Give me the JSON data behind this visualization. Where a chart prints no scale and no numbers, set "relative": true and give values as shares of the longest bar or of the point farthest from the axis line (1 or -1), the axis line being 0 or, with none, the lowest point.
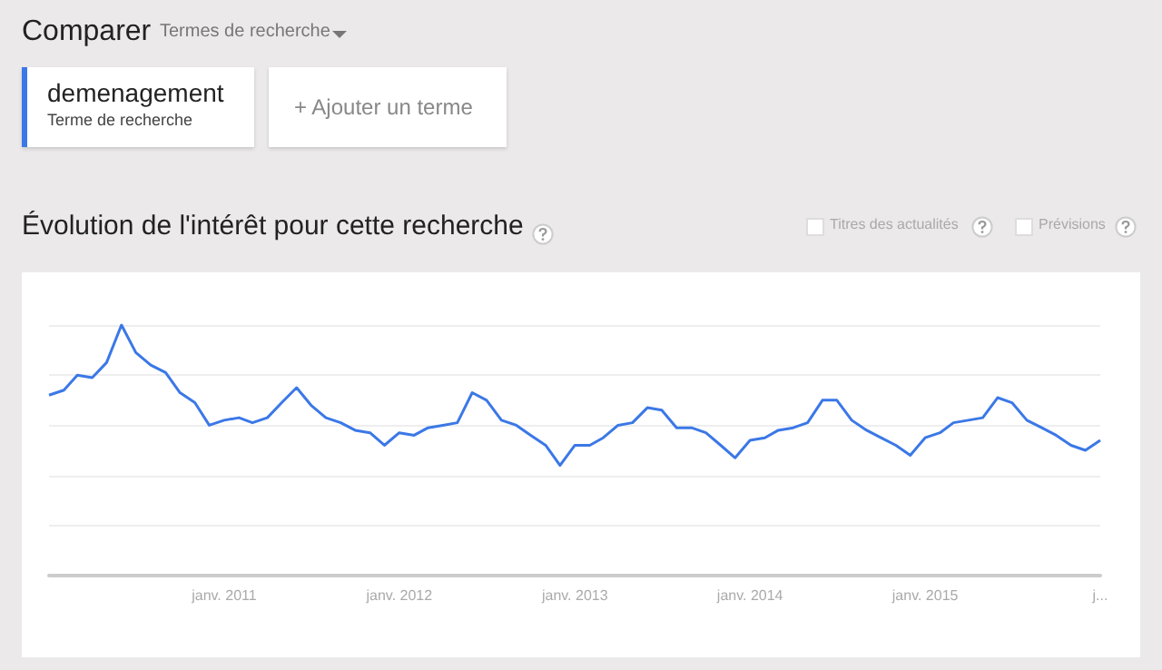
{
  "chart_data": {
    "type": "line",
    "title": "Évolution de l'intérêt pour cette recherche",
    "relative": true,
    "grid": "y",
    "legend": "top left",
    "marker": "none",
    "line_style": "solid",
    "annotations": [
      "Comparer",
      "Termes de recherche",
      "Terme de recherche",
      "+ Ajouter un terme",
      "Titres des actualités",
      "Prévisions"
    ],
    "x": [
      "2010-01",
      "2010-02",
      "2010-03",
      "2010-04",
      "2010-05",
      "2010-06",
      "2010-07",
      "2010-08",
      "2010-09",
      "2010-10",
      "2010-11",
      "2010-12",
      "2011-01",
      "2011-02",
      "2011-03",
      "2011-04",
      "2011-05",
      "2011-06",
      "2011-07",
      "2011-08",
      "2011-09",
      "2011-10",
      "2011-11",
      "2011-12",
      "2012-01",
      "2012-02",
      "2012-03",
      "2012-04",
      "2012-05",
      "2012-06",
      "2012-07",
      "2012-08",
      "2012-09",
      "2012-10",
      "2012-11",
      "2012-12",
      "2013-01",
      "2013-02",
      "2013-03",
      "2013-04",
      "2013-05",
      "2013-06",
      "2013-07",
      "2013-08",
      "2013-09",
      "2013-10",
      "2013-11",
      "2013-12",
      "2014-01",
      "2014-02",
      "2014-03",
      "2014-04",
      "2014-05",
      "2014-06",
      "2014-07",
      "2014-08",
      "2014-09",
      "2014-10",
      "2014-11",
      "2014-12",
      "2015-01",
      "2015-02",
      "2015-03",
      "2015-04",
      "2015-05",
      "2015-06",
      "2015-07",
      "2015-08",
      "2015-09",
      "2015-10",
      "2015-11",
      "2015-12",
      "2016-01"
    ],
    "xlim": [
      "2010-01",
      "2016-01"
    ],
    "xticks": [
      {
        "value": "2011-01",
        "label": "janv. 2011"
      },
      {
        "value": "2012-01",
        "label": "janv. 2012"
      },
      {
        "value": "2013-01",
        "label": "janv. 2013"
      },
      {
        "value": "2014-01",
        "label": "janv. 2014"
      },
      {
        "value": "2015-01",
        "label": "janv. 2015"
      },
      {
        "value": "2016-01",
        "label": "j..."
      }
    ],
    "series": [
      {
        "name": "demenagement",
        "color": "#3b78e7",
        "values": [
          0.72,
          0.74,
          0.8,
          0.79,
          0.85,
          1,
          0.89,
          0.84,
          0.81,
          0.73,
          0.69,
          0.6,
          0.62,
          0.63,
          0.61,
          0.63,
          0.69,
          0.75,
          0.68,
          0.63,
          0.61,
          0.58,
          0.57,
          0.52,
          0.57,
          0.56,
          0.59,
          0.6,
          0.61,
          0.73,
          0.7,
          0.62,
          0.6,
          0.56,
          0.52,
          0.44,
          0.52,
          0.52,
          0.55,
          0.6,
          0.61,
          0.67,
          0.66,
          0.59,
          0.59,
          0.57,
          0.52,
          0.47,
          0.54,
          0.55,
          0.58,
          0.59,
          0.61,
          0.7,
          0.7,
          0.62,
          0.58,
          0.55,
          0.52,
          0.48,
          0.55,
          0.57,
          0.61,
          0.62,
          0.63,
          0.71,
          0.69,
          0.62,
          0.59,
          0.56,
          0.52,
          0.5,
          0.54
        ]
      }
    ]
  }
}
